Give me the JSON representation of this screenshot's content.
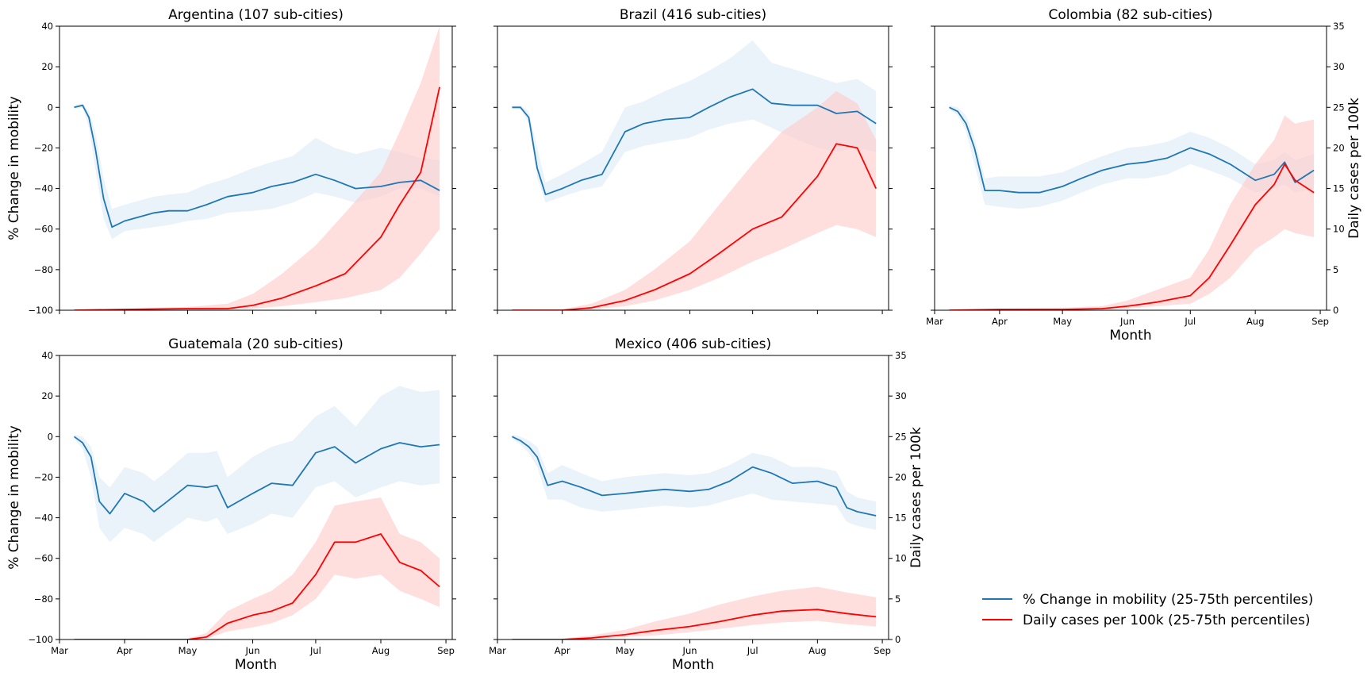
{
  "chart_data": [
    {
      "type": "line",
      "title": "Argentina (107 sub-cities)",
      "xlabel": "",
      "ylabel_left": "% Change in mobility",
      "ylabel_right": "",
      "xlim": [
        "2020-03-01",
        "2020-09-04"
      ],
      "ylim_left": [
        -100,
        40
      ],
      "ylim_right": [
        0,
        35
      ],
      "x_ticks": [
        "Mar",
        "Apr",
        "May",
        "Jun",
        "Jul",
        "Aug",
        "Sep"
      ],
      "y_ticks_left": [
        "40",
        "20",
        "0",
        "−20",
        "−40",
        "−60",
        "−80",
        "−100"
      ],
      "y_ticks_right": [],
      "show_x_tick_labels": false,
      "mobility": {
        "dates": [
          "2020-03-08",
          "2020-03-12",
          "2020-03-15",
          "2020-03-18",
          "2020-03-22",
          "2020-03-26",
          "2020-04-01",
          "2020-04-08",
          "2020-04-15",
          "2020-04-22",
          "2020-05-01",
          "2020-05-10",
          "2020-05-20",
          "2020-06-01",
          "2020-06-10",
          "2020-06-20",
          "2020-07-01",
          "2020-07-10",
          "2020-07-20",
          "2020-08-01",
          "2020-08-10",
          "2020-08-20",
          "2020-08-29"
        ],
        "median": [
          0,
          1,
          -5,
          -20,
          -45,
          -59,
          -56,
          -54,
          -52,
          -51,
          -51,
          -48,
          -44,
          -42,
          -39,
          -37,
          -33,
          -36,
          -40,
          -39,
          -37,
          -36,
          -41
        ],
        "p25": [
          -1,
          0,
          -10,
          -30,
          -55,
          -65,
          -61,
          -60,
          -59,
          -58,
          -56,
          -55,
          -52,
          -51,
          -50,
          -47,
          -42,
          -44,
          -47,
          -44,
          -40,
          -40,
          -44
        ],
        "p75": [
          1,
          2,
          -2,
          -12,
          -35,
          -50,
          -48,
          -46,
          -44,
          -43,
          -42,
          -38,
          -35,
          -30,
          -27,
          -24,
          -15,
          -20,
          -23,
          -20,
          -22,
          -25,
          -26
        ]
      },
      "cases": {
        "dates": [
          "2020-03-08",
          "2020-04-01",
          "2020-05-01",
          "2020-05-20",
          "2020-06-01",
          "2020-06-15",
          "2020-07-01",
          "2020-07-15",
          "2020-08-01",
          "2020-08-10",
          "2020-08-20",
          "2020-08-29"
        ],
        "median": [
          0,
          0.1,
          0.2,
          0.2,
          0.6,
          1.5,
          3.0,
          4.5,
          9.0,
          13.0,
          17.0,
          27.5
        ],
        "p25": [
          0,
          0,
          0,
          0.1,
          0.2,
          0.5,
          1.0,
          1.5,
          2.5,
          4.0,
          7.0,
          10.0
        ],
        "p75": [
          0,
          0.2,
          0.4,
          0.8,
          2.0,
          4.5,
          8.0,
          12.0,
          17.0,
          22.0,
          28.0,
          35.0
        ]
      }
    },
    {
      "type": "line",
      "title": "Brazil (416 sub-cities)",
      "xlabel": "",
      "ylabel_left": "",
      "ylabel_right": "",
      "xlim": [
        "2020-03-01",
        "2020-09-04"
      ],
      "ylim_left": [
        -100,
        40
      ],
      "ylim_right": [
        0,
        35
      ],
      "x_ticks": [
        "Mar",
        "Apr",
        "May",
        "Jun",
        "Jul",
        "Aug",
        "Sep"
      ],
      "y_ticks_left": [],
      "y_ticks_right": [],
      "show_x_tick_labels": false,
      "mobility": {
        "dates": [
          "2020-03-08",
          "2020-03-12",
          "2020-03-16",
          "2020-03-20",
          "2020-03-24",
          "2020-04-01",
          "2020-04-10",
          "2020-04-20",
          "2020-05-01",
          "2020-05-10",
          "2020-05-20",
          "2020-06-01",
          "2020-06-10",
          "2020-06-20",
          "2020-07-01",
          "2020-07-10",
          "2020-07-20",
          "2020-08-01",
          "2020-08-10",
          "2020-08-20",
          "2020-08-29"
        ],
        "median": [
          0,
          0,
          -5,
          -30,
          -43,
          -40,
          -36,
          -33,
          -12,
          -8,
          -6,
          -5,
          0,
          5,
          9,
          2,
          1,
          1,
          -3,
          -2,
          -8
        ],
        "p25": [
          -1,
          -1,
          -8,
          -35,
          -47,
          -44,
          -41,
          -39,
          -22,
          -19,
          -17,
          -15,
          -11,
          -8,
          -6,
          -10,
          -15,
          -20,
          -22,
          -20,
          -22
        ],
        "p75": [
          1,
          1,
          -2,
          -20,
          -37,
          -33,
          -28,
          -22,
          0,
          3,
          8,
          13,
          18,
          24,
          33,
          22,
          19,
          15,
          12,
          14,
          8
        ]
      },
      "cases": {
        "dates": [
          "2020-03-08",
          "2020-04-01",
          "2020-04-15",
          "2020-05-01",
          "2020-05-15",
          "2020-06-01",
          "2020-06-15",
          "2020-07-01",
          "2020-07-15",
          "2020-08-01",
          "2020-08-10",
          "2020-08-20",
          "2020-08-29"
        ],
        "median": [
          0,
          0,
          0.3,
          1.2,
          2.5,
          4.5,
          7.0,
          10.0,
          11.5,
          16.5,
          20.5,
          20.0,
          15.0
        ],
        "p25": [
          0,
          0,
          0.1,
          0.5,
          1.2,
          2.5,
          4.0,
          6.0,
          7.5,
          9.5,
          10.5,
          10.0,
          9.0
        ],
        "p75": [
          0,
          0.1,
          0.8,
          2.5,
          5.0,
          8.5,
          13.0,
          18.0,
          22.0,
          25.0,
          27.0,
          25.5,
          21.0
        ]
      }
    },
    {
      "type": "line",
      "title": "Colombia (82 sub-cities)",
      "xlabel": "Month",
      "ylabel_left": "",
      "ylabel_right": "Daily cases per 100k",
      "xlim": [
        "2020-03-01",
        "2020-09-04"
      ],
      "ylim_left": [
        -100,
        40
      ],
      "ylim_right": [
        0,
        35
      ],
      "x_ticks": [
        "Mar",
        "Apr",
        "May",
        "Jun",
        "Jul",
        "Aug",
        "Sep"
      ],
      "y_ticks_left": [],
      "y_ticks_right": [
        "35",
        "30",
        "25",
        "20",
        "15",
        "10",
        "5",
        "0"
      ],
      "show_x_tick_labels": true,
      "mobility": {
        "dates": [
          "2020-03-08",
          "2020-03-12",
          "2020-03-16",
          "2020-03-20",
          "2020-03-25",
          "2020-04-01",
          "2020-04-10",
          "2020-04-20",
          "2020-05-01",
          "2020-05-10",
          "2020-05-20",
          "2020-06-01",
          "2020-06-10",
          "2020-06-20",
          "2020-07-01",
          "2020-07-10",
          "2020-07-20",
          "2020-08-01",
          "2020-08-10",
          "2020-08-15",
          "2020-08-20",
          "2020-08-29"
        ],
        "median": [
          0,
          -2,
          -8,
          -20,
          -41,
          -41,
          -42,
          -42,
          -39,
          -35,
          -31,
          -28,
          -27,
          -25,
          -20,
          -23,
          -28,
          -36,
          -33,
          -27,
          -37,
          -31
        ],
        "p25": [
          -1,
          -4,
          -12,
          -28,
          -48,
          -49,
          -50,
          -49,
          -46,
          -42,
          -38,
          -35,
          -35,
          -33,
          -28,
          -31,
          -35,
          -42,
          -40,
          -38,
          -42,
          -40
        ],
        "p75": [
          1,
          0,
          -4,
          -15,
          -35,
          -34,
          -34,
          -34,
          -32,
          -28,
          -24,
          -20,
          -19,
          -17,
          -12,
          -15,
          -20,
          -28,
          -26,
          -22,
          -26,
          -23
        ]
      },
      "cases": {
        "dates": [
          "2020-03-08",
          "2020-04-01",
          "2020-05-01",
          "2020-05-20",
          "2020-06-01",
          "2020-06-15",
          "2020-07-01",
          "2020-07-10",
          "2020-07-20",
          "2020-08-01",
          "2020-08-10",
          "2020-08-15",
          "2020-08-20",
          "2020-08-29"
        ],
        "median": [
          0,
          0.1,
          0.1,
          0.2,
          0.5,
          1.0,
          1.8,
          4.0,
          8.0,
          13.0,
          15.5,
          18.0,
          16.0,
          14.5
        ],
        "p25": [
          0,
          0,
          0,
          0.1,
          0.2,
          0.5,
          0.8,
          2.0,
          4.0,
          7.5,
          9.0,
          10.0,
          9.5,
          9.0
        ],
        "p75": [
          0,
          0.2,
          0.3,
          0.5,
          1.2,
          2.5,
          4.0,
          7.5,
          13.0,
          18.0,
          21.0,
          24.0,
          23.0,
          23.5
        ]
      }
    },
    {
      "type": "line",
      "title": "Guatemala (20 sub-cities)",
      "xlabel": "Month",
      "ylabel_left": "% Change in mobility",
      "ylabel_right": "",
      "xlim": [
        "2020-03-01",
        "2020-09-04"
      ],
      "ylim_left": [
        -100,
        40
      ],
      "ylim_right": [
        0,
        35
      ],
      "x_ticks": [
        "Mar",
        "Apr",
        "May",
        "Jun",
        "Jul",
        "Aug",
        "Sep"
      ],
      "y_ticks_left": [
        "40",
        "20",
        "0",
        "−20",
        "−40",
        "−60",
        "−80",
        "−100"
      ],
      "y_ticks_right": [],
      "show_x_tick_labels": true,
      "mobility": {
        "dates": [
          "2020-03-08",
          "2020-03-12",
          "2020-03-16",
          "2020-03-20",
          "2020-03-25",
          "2020-04-01",
          "2020-04-10",
          "2020-04-15",
          "2020-04-20",
          "2020-05-01",
          "2020-05-10",
          "2020-05-15",
          "2020-05-20",
          "2020-06-01",
          "2020-06-10",
          "2020-06-20",
          "2020-07-01",
          "2020-07-10",
          "2020-07-20",
          "2020-08-01",
          "2020-08-10",
          "2020-08-20",
          "2020-08-29"
        ],
        "median": [
          0,
          -3,
          -10,
          -32,
          -38,
          -28,
          -32,
          -37,
          -33,
          -24,
          -25,
          -24,
          -35,
          -28,
          -23,
          -24,
          -8,
          -5,
          -13,
          -6,
          -3,
          -5,
          -4
        ],
        "p25": [
          -1,
          -6,
          -20,
          -45,
          -52,
          -45,
          -48,
          -52,
          -48,
          -40,
          -42,
          -40,
          -48,
          -43,
          -38,
          -40,
          -25,
          -22,
          -30,
          -25,
          -22,
          -24,
          -23
        ],
        "p75": [
          1,
          0,
          -5,
          -20,
          -25,
          -15,
          -18,
          -22,
          -18,
          -8,
          -8,
          -7,
          -20,
          -10,
          -5,
          -2,
          10,
          15,
          5,
          20,
          25,
          22,
          23
        ]
      },
      "cases": {
        "dates": [
          "2020-03-08",
          "2020-05-01",
          "2020-05-10",
          "2020-05-20",
          "2020-06-01",
          "2020-06-10",
          "2020-06-20",
          "2020-07-01",
          "2020-07-10",
          "2020-07-20",
          "2020-08-01",
          "2020-08-10",
          "2020-08-20",
          "2020-08-29"
        ],
        "median": [
          0,
          0,
          0.3,
          2.0,
          3.0,
          3.5,
          4.5,
          8.0,
          12.0,
          12.0,
          13.0,
          9.5,
          8.5,
          6.5
        ],
        "p25": [
          0,
          0,
          0.1,
          1.0,
          1.5,
          2.0,
          3.0,
          5.0,
          8.0,
          7.5,
          8.0,
          6.0,
          5.0,
          4.0
        ],
        "p75": [
          0,
          0.1,
          0.8,
          3.5,
          5.0,
          6.0,
          8.0,
          12.0,
          16.5,
          17.0,
          17.5,
          13.0,
          12.0,
          10.0
        ]
      }
    },
    {
      "type": "line",
      "title": "Mexico (406 sub-cities)",
      "xlabel": "Month",
      "ylabel_left": "",
      "ylabel_right": "Daily cases per 100k",
      "xlim": [
        "2020-03-01",
        "2020-09-04"
      ],
      "ylim_left": [
        -100,
        40
      ],
      "ylim_right": [
        0,
        35
      ],
      "x_ticks": [
        "Mar",
        "Apr",
        "May",
        "Jun",
        "Jul",
        "Aug",
        "Sep"
      ],
      "y_ticks_left": [],
      "y_ticks_right": [
        "35",
        "30",
        "25",
        "20",
        "15",
        "10",
        "5",
        "0"
      ],
      "show_x_tick_labels": true,
      "mobility": {
        "dates": [
          "2020-03-08",
          "2020-03-12",
          "2020-03-16",
          "2020-03-20",
          "2020-03-25",
          "2020-04-01",
          "2020-04-10",
          "2020-04-20",
          "2020-05-01",
          "2020-05-10",
          "2020-05-20",
          "2020-06-01",
          "2020-06-10",
          "2020-06-20",
          "2020-07-01",
          "2020-07-10",
          "2020-07-20",
          "2020-08-01",
          "2020-08-10",
          "2020-08-15",
          "2020-08-20",
          "2020-08-29"
        ],
        "median": [
          0,
          -2,
          -5,
          -10,
          -24,
          -22,
          -25,
          -29,
          -28,
          -27,
          -26,
          -27,
          -26,
          -22,
          -15,
          -18,
          -23,
          -22,
          -25,
          -35,
          -37,
          -39
        ],
        "p25": [
          -1,
          -4,
          -8,
          -15,
          -31,
          -31,
          -35,
          -37,
          -36,
          -35,
          -34,
          -35,
          -34,
          -31,
          -28,
          -31,
          -32,
          -33,
          -34,
          -42,
          -44,
          -46
        ],
        "p75": [
          1,
          0,
          -2,
          -5,
          -18,
          -14,
          -18,
          -22,
          -20,
          -19,
          -18,
          -19,
          -18,
          -14,
          -8,
          -10,
          -15,
          -15,
          -17,
          -27,
          -30,
          -32
        ]
      },
      "cases": {
        "dates": [
          "2020-03-08",
          "2020-04-01",
          "2020-04-15",
          "2020-05-01",
          "2020-05-15",
          "2020-06-01",
          "2020-06-15",
          "2020-07-01",
          "2020-07-15",
          "2020-08-01",
          "2020-08-15",
          "2020-08-29"
        ],
        "median": [
          0,
          0,
          0.2,
          0.6,
          1.1,
          1.6,
          2.2,
          3.0,
          3.5,
          3.7,
          3.2,
          2.8
        ],
        "p25": [
          0,
          0,
          0.05,
          0.3,
          0.5,
          0.9,
          1.3,
          1.8,
          2.1,
          2.3,
          1.9,
          1.6
        ],
        "p75": [
          0,
          0.1,
          0.5,
          1.2,
          2.2,
          3.2,
          4.3,
          5.3,
          6.0,
          6.5,
          5.8,
          5.2
        ]
      }
    }
  ],
  "legend": {
    "items": [
      {
        "label": "% Change in mobility (25-75th percentiles)",
        "color": "#1f77b4"
      },
      {
        "label": "Daily cases per 100k (25-75th percentiles)",
        "color": "#ff0000"
      }
    ],
    "placement": "lower-right"
  },
  "colors": {
    "mobility_line": "#1f77b4",
    "mobility_band": "#deebf7",
    "cases_line": "#ff0000",
    "cases_band": "#ffc9c9"
  }
}
